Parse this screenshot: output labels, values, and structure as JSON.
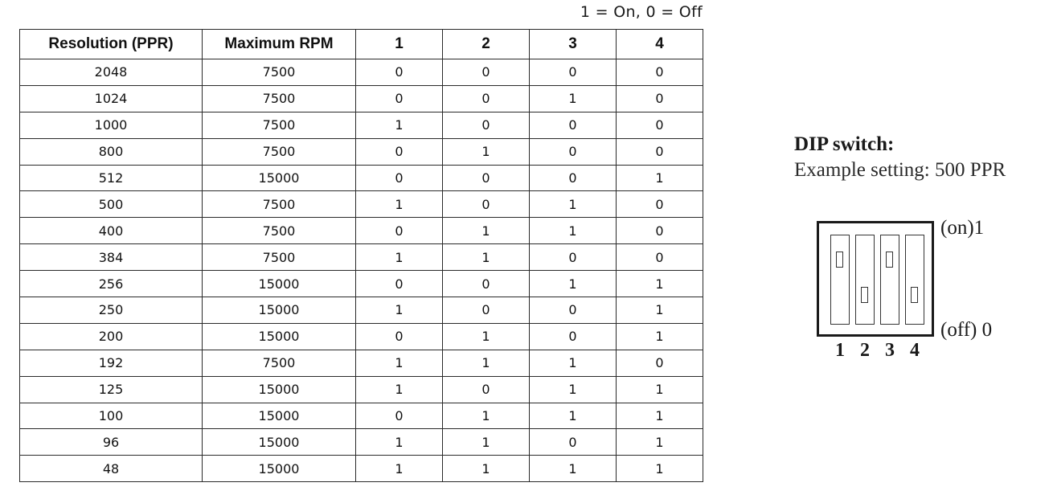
{
  "legend": "1 = On, 0 = Off",
  "table": {
    "headers": [
      "Resolution (PPR)",
      "Maximum RPM",
      "1",
      "2",
      "3",
      "4"
    ],
    "rows": [
      [
        "2048",
        "7500",
        "0",
        "0",
        "0",
        "0"
      ],
      [
        "1024",
        "7500",
        "0",
        "0",
        "1",
        "0"
      ],
      [
        "1000",
        "7500",
        "1",
        "0",
        "0",
        "0"
      ],
      [
        "800",
        "7500",
        "0",
        "1",
        "0",
        "0"
      ],
      [
        "512",
        "15000",
        "0",
        "0",
        "0",
        "1"
      ],
      [
        "500",
        "7500",
        "1",
        "0",
        "1",
        "0"
      ],
      [
        "400",
        "7500",
        "0",
        "1",
        "1",
        "0"
      ],
      [
        "384",
        "7500",
        "1",
        "1",
        "0",
        "0"
      ],
      [
        "256",
        "15000",
        "0",
        "0",
        "1",
        "1"
      ],
      [
        "250",
        "15000",
        "1",
        "0",
        "0",
        "1"
      ],
      [
        "200",
        "15000",
        "0",
        "1",
        "0",
        "1"
      ],
      [
        "192",
        "7500",
        "1",
        "1",
        "1",
        "0"
      ],
      [
        "125",
        "15000",
        "1",
        "0",
        "1",
        "1"
      ],
      [
        "100",
        "15000",
        "0",
        "1",
        "1",
        "1"
      ],
      [
        "96",
        "15000",
        "1",
        "1",
        "0",
        "1"
      ],
      [
        "48",
        "15000",
        "1",
        "1",
        "1",
        "1"
      ]
    ]
  },
  "dip": {
    "title": "DIP switch:",
    "example": "Example setting: 500 PPR",
    "on_label": "(on)1",
    "off_label": "(off) 0",
    "switch_numbers": [
      "1",
      "2",
      "3",
      "4"
    ],
    "switch_states": [
      "on",
      "off",
      "on",
      "off"
    ]
  }
}
